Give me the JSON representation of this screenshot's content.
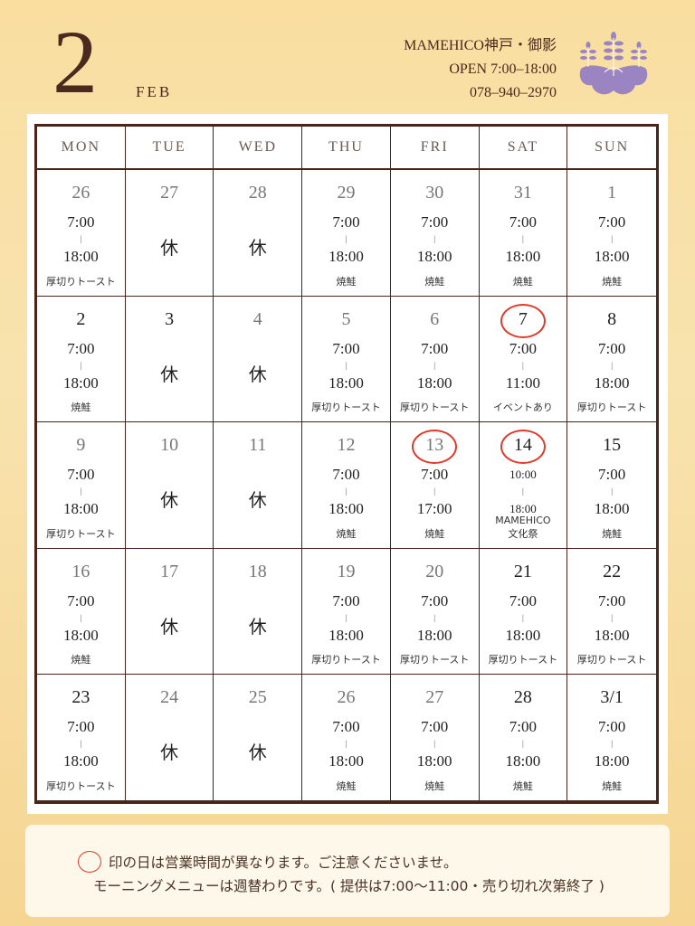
{
  "header": {
    "month_number": "2",
    "month_abbr": "FEB",
    "shop_name": "MAMEHICO神戸・御影",
    "hours": "OPEN  7:00–18:00",
    "phone": "078–940–2970",
    "logo": "wisteria-crest-icon",
    "logo_color": "#9a85c2"
  },
  "weekdays": [
    "MON",
    "TUE",
    "WED",
    "THU",
    "FRI",
    "SAT",
    "SUN"
  ],
  "closed_label": "休",
  "circle_color": "#e03a2c",
  "weeks": [
    [
      {
        "day": "26",
        "open": "7:00",
        "close": "18:00",
        "note": "厚切りトースト"
      },
      {
        "day": "27",
        "closed": true
      },
      {
        "day": "28",
        "closed": true
      },
      {
        "day": "29",
        "open": "7:00",
        "close": "18:00",
        "note": "焼鮭"
      },
      {
        "day": "30",
        "open": "7:00",
        "close": "18:00",
        "note": "焼鮭"
      },
      {
        "day": "31",
        "open": "7:00",
        "close": "18:00",
        "note": "焼鮭"
      },
      {
        "day": "1",
        "open": "7:00",
        "close": "18:00",
        "note": "焼鮭"
      }
    ],
    [
      {
        "day": "2",
        "dark": true,
        "open": "7:00",
        "close": "18:00",
        "note": "焼鮭"
      },
      {
        "day": "3",
        "dark": true,
        "closed": true
      },
      {
        "day": "4",
        "closed": true
      },
      {
        "day": "5",
        "open": "7:00",
        "close": "18:00",
        "note": "厚切りトースト"
      },
      {
        "day": "6",
        "open": "7:00",
        "close": "18:00",
        "note": "厚切りトースト"
      },
      {
        "day": "7",
        "dark": true,
        "circled": true,
        "open": "7:00",
        "close": "11:00",
        "note": "イベントあり"
      },
      {
        "day": "8",
        "dark": true,
        "open": "7:00",
        "close": "18:00",
        "note": "厚切りトースト"
      }
    ],
    [
      {
        "day": "9",
        "open": "7:00",
        "close": "18:00",
        "note": "厚切りトースト"
      },
      {
        "day": "10",
        "closed": true
      },
      {
        "day": "11",
        "closed": true
      },
      {
        "day": "12",
        "open": "7:00",
        "close": "18:00",
        "note": "焼鮭"
      },
      {
        "day": "13",
        "circled": true,
        "open": "7:00",
        "close": "17:00",
        "note": "焼鮭"
      },
      {
        "day": "14",
        "dark": true,
        "circled": true,
        "small": true,
        "open": "10:00",
        "close": "18:00",
        "note": "MAMEHICO",
        "note2": "文化祭"
      },
      {
        "day": "15",
        "dark": true,
        "open": "7:00",
        "close": "18:00",
        "note": "焼鮭"
      }
    ],
    [
      {
        "day": "16",
        "open": "7:00",
        "close": "18:00",
        "note": "焼鮭"
      },
      {
        "day": "17",
        "closed": true
      },
      {
        "day": "18",
        "closed": true
      },
      {
        "day": "19",
        "open": "7:00",
        "close": "18:00",
        "note": "厚切りトースト"
      },
      {
        "day": "20",
        "open": "7:00",
        "close": "18:00",
        "note": "厚切りトースト"
      },
      {
        "day": "21",
        "dark": true,
        "open": "7:00",
        "close": "18:00",
        "note": "厚切りトースト"
      },
      {
        "day": "22",
        "dark": true,
        "open": "7:00",
        "close": "18:00",
        "note": "厚切りトースト"
      }
    ],
    [
      {
        "day": "23",
        "dark": true,
        "open": "7:00",
        "close": "18:00",
        "note": "厚切りトースト"
      },
      {
        "day": "24",
        "closed": true
      },
      {
        "day": "25",
        "closed": true
      },
      {
        "day": "26",
        "open": "7:00",
        "close": "18:00",
        "note": "焼鮭"
      },
      {
        "day": "27",
        "open": "7:00",
        "close": "18:00",
        "note": "焼鮭"
      },
      {
        "day": "28",
        "dark": true,
        "open": "7:00",
        "close": "18:00",
        "note": "焼鮭"
      },
      {
        "day": "3/1",
        "dark": true,
        "open": "7:00",
        "close": "18:00",
        "note": "焼鮭"
      }
    ]
  ],
  "footer": {
    "line1": "印の日は営業時間が異なります。ご注意くださいませ。",
    "line2": "モーニングメニューは週替わりです。( 提供は7:00〜11:00・売り切れ次第終了 )"
  }
}
